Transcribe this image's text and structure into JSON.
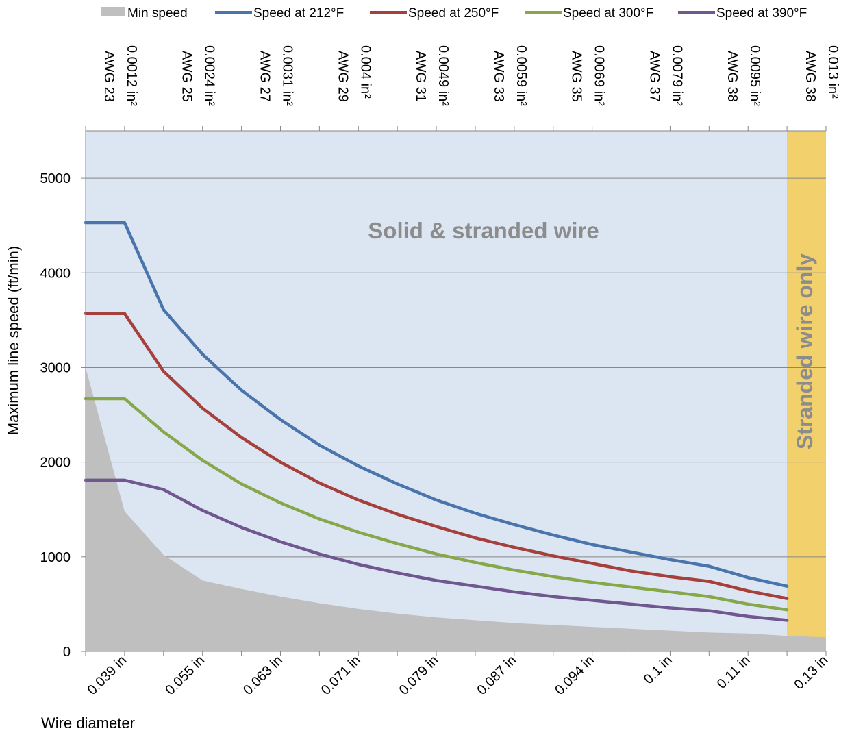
{
  "chart_data": {
    "type": "line",
    "ylabel": "Maximum line speed (ft/min)",
    "xlabel": "Wire diameter",
    "ylim": [
      0,
      5500
    ],
    "yticks": [
      0,
      1000,
      2000,
      3000,
      4000,
      5000
    ],
    "grid": true,
    "legend_position": "top",
    "x_tick_labels": [
      "0.039 in",
      "0.055 in",
      "0.063 in",
      "0.071 in",
      "0.079 in",
      "0.087 in",
      "0.094 in",
      "0.1 in",
      "0.11 in",
      "0.13 in"
    ],
    "top_tick_labels": [
      {
        "area": "0.0012 in²",
        "gauge": "AWG 23"
      },
      {
        "area": "0.0024 in²",
        "gauge": "AWG 25"
      },
      {
        "area": "0.0031 in²",
        "gauge": "AWG 27"
      },
      {
        "area": "0.004 in²",
        "gauge": "AWG 29"
      },
      {
        "area": "0.0049 in²",
        "gauge": "AWG 31"
      },
      {
        "area": "0.0059 in²",
        "gauge": "AWG 33"
      },
      {
        "area": "0.0069 in²",
        "gauge": "AWG 35"
      },
      {
        "area": "0.0079 in²",
        "gauge": "AWG 37"
      },
      {
        "area": "0.0095 in²",
        "gauge": "AWG 38"
      },
      {
        "area": "0.013 in²",
        "gauge": "AWG 38"
      }
    ],
    "x_index": [
      0,
      1,
      2,
      3,
      4,
      5,
      6,
      7,
      8,
      9,
      10,
      11,
      12,
      13,
      14,
      15,
      16,
      17,
      18,
      19
    ],
    "min_speed": {
      "name": "Min speed",
      "color": "#bfbfbf",
      "values": [
        3000,
        1480,
        1020,
        750,
        660,
        580,
        510,
        450,
        400,
        360,
        330,
        300,
        280,
        260,
        240,
        220,
        200,
        190,
        165,
        150
      ]
    },
    "series": [
      {
        "name": "Speed at 212°F",
        "color": "#4a74ac",
        "values": [
          4530,
          4530,
          3610,
          3140,
          2760,
          2450,
          2180,
          1960,
          1770,
          1600,
          1460,
          1340,
          1230,
          1130,
          1050,
          970,
          900,
          780,
          690
        ]
      },
      {
        "name": "Speed at 250°F",
        "color": "#a6403c",
        "values": [
          3570,
          3570,
          2960,
          2570,
          2260,
          2000,
          1780,
          1600,
          1450,
          1320,
          1200,
          1100,
          1010,
          930,
          850,
          790,
          740,
          640,
          560
        ]
      },
      {
        "name": "Speed at 300°F",
        "color": "#86a84a",
        "values": [
          2670,
          2670,
          2320,
          2020,
          1770,
          1570,
          1400,
          1260,
          1140,
          1030,
          940,
          860,
          790,
          730,
          680,
          630,
          580,
          500,
          440
        ]
      },
      {
        "name": "Speed at 390°F",
        "color": "#71578f",
        "values": [
          1810,
          1810,
          1710,
          1490,
          1310,
          1160,
          1030,
          920,
          830,
          750,
          690,
          630,
          580,
          540,
          500,
          460,
          430,
          370,
          330
        ]
      }
    ],
    "regions": [
      {
        "label": "Solid & stranded wire",
        "color": "#dce6f2"
      },
      {
        "label": "Stranded wire only",
        "color": "#f2d16d"
      }
    ]
  }
}
